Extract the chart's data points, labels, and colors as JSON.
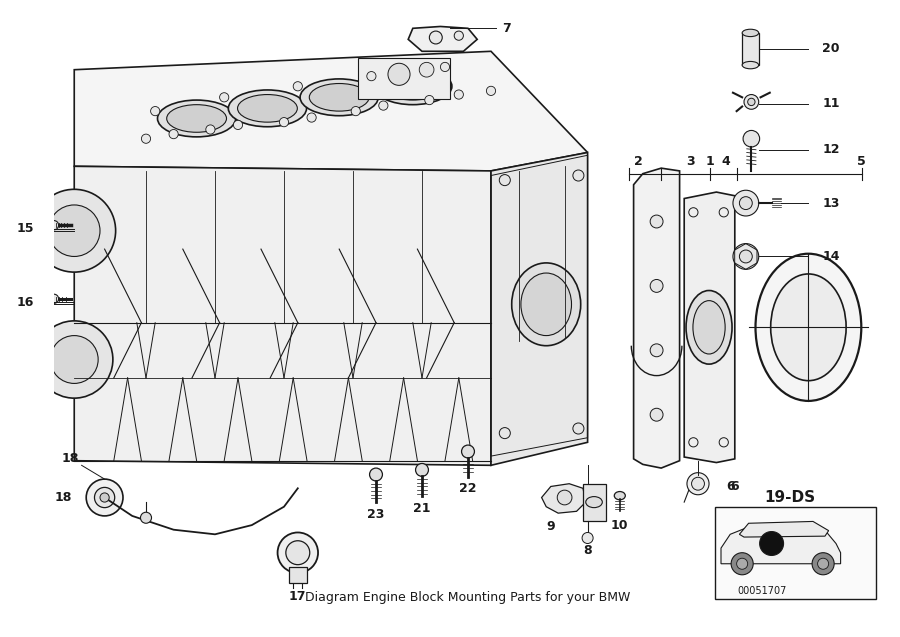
{
  "title": "Diagram Engine Block Mounting Parts for your BMW",
  "bg_color": "#ffffff",
  "line_color": "#1a1a1a",
  "fig_w": 9.0,
  "fig_h": 6.37,
  "dpi": 100,
  "font_size_label": 9,
  "font_size_title": 9,
  "font_size_small": 7
}
